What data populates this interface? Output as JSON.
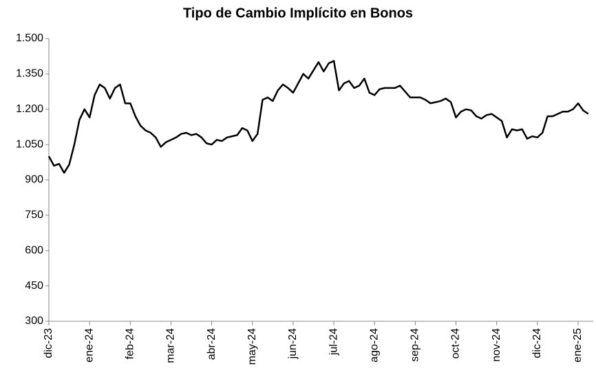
{
  "chart_data": {
    "type": "line",
    "title": "Tipo de Cambio Implícito en Bonos",
    "categories": [
      "dic-23",
      null,
      null,
      null,
      null,
      null,
      null,
      null,
      "ene-24",
      null,
      null,
      null,
      null,
      null,
      null,
      null,
      "feb-24",
      null,
      null,
      null,
      null,
      null,
      null,
      null,
      "mar-24",
      null,
      null,
      null,
      null,
      null,
      null,
      null,
      "abr-24",
      null,
      null,
      null,
      null,
      null,
      null,
      null,
      "may-24",
      null,
      null,
      null,
      null,
      null,
      null,
      null,
      "jun-24",
      null,
      null,
      null,
      null,
      null,
      null,
      null,
      "jul-24",
      null,
      null,
      null,
      null,
      null,
      null,
      null,
      "ago-24",
      null,
      null,
      null,
      null,
      null,
      null,
      null,
      "sep-24",
      null,
      null,
      null,
      null,
      null,
      null,
      null,
      "oct-24",
      null,
      null,
      null,
      null,
      null,
      null,
      null,
      "nov-24",
      null,
      null,
      null,
      null,
      null,
      null,
      null,
      "dic-24",
      null,
      null,
      null,
      null,
      null,
      null,
      null,
      "ene-25",
      null,
      null
    ],
    "series": [
      {
        "name": "Tipo de Cambio Implícito",
        "color": "#000000",
        "values": [
          1000,
          960,
          968,
          930,
          965,
          1050,
          1155,
          1200,
          1165,
          1260,
          1305,
          1290,
          1245,
          1290,
          1305,
          1225,
          1225,
          1170,
          1130,
          1110,
          1100,
          1080,
          1040,
          1060,
          1070,
          1080,
          1095,
          1100,
          1090,
          1095,
          1080,
          1055,
          1050,
          1070,
          1065,
          1080,
          1085,
          1090,
          1120,
          1110,
          1065,
          1095,
          1240,
          1250,
          1235,
          1280,
          1305,
          1290,
          1270,
          1310,
          1350,
          1330,
          1365,
          1400,
          1360,
          1395,
          1405,
          1280,
          1310,
          1320,
          1290,
          1300,
          1330,
          1270,
          1260,
          1285,
          1290,
          1290,
          1290,
          1300,
          1275,
          1250,
          1250,
          1250,
          1240,
          1225,
          1230,
          1235,
          1245,
          1230,
          1165,
          1190,
          1200,
          1195,
          1170,
          1160,
          1175,
          1180,
          1165,
          1150,
          1080,
          1115,
          1110,
          1115,
          1075,
          1085,
          1080,
          1100,
          1170,
          1170,
          1180,
          1190,
          1190,
          1200,
          1225,
          1195,
          1180
        ]
      }
    ],
    "ylim": [
      300,
      1500
    ],
    "yticks": [
      300,
      450,
      600,
      750,
      900,
      {
        "value": 1050,
        "label": "1.050"
      },
      {
        "value": 1200,
        "label": "1.200"
      },
      {
        "value": 1350,
        "label": "1.350"
      },
      {
        "value": 1500,
        "label": "1.500"
      }
    ],
    "grid": false
  }
}
